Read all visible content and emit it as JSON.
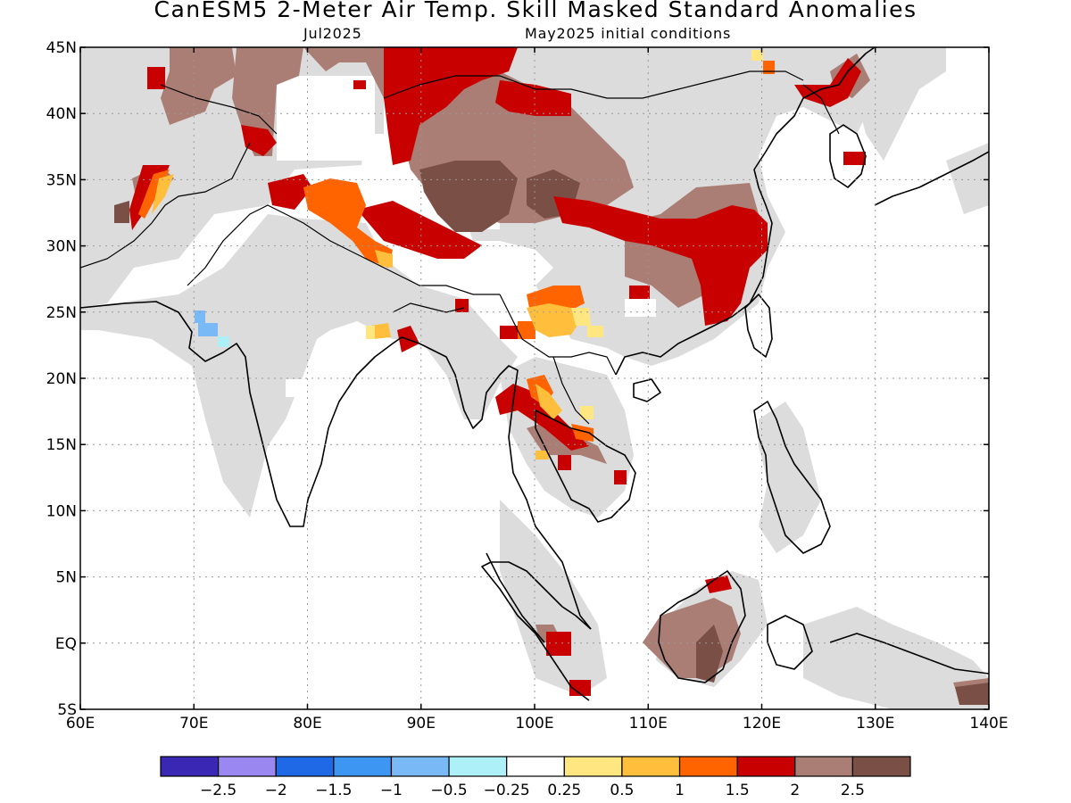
{
  "title": "CanESM5 2-Meter Air Temp. Skill Masked Standard Anomalies",
  "valid_month": "Jul2025",
  "init_conditions": "May2025 initial conditions",
  "map": {
    "lon_range": [
      60,
      140
    ],
    "lat_range": [
      -5,
      45
    ],
    "lon_ticks": [
      "60E",
      "70E",
      "80E",
      "90E",
      "100E",
      "110E",
      "120E",
      "130E",
      "140E"
    ],
    "lat_ticks": [
      "5S",
      "EQ",
      "5N",
      "10N",
      "15N",
      "20N",
      "25N",
      "30N",
      "35N",
      "40N",
      "45N"
    ],
    "mask_color": "#dcdcdc"
  },
  "colorbar": {
    "colors": [
      "#3a28b4",
      "#9b87f0",
      "#1f69e6",
      "#3d96f2",
      "#79b9f5",
      "#aef0f7",
      "#ffffff",
      "#ffe680",
      "#ffbe3c",
      "#ff6400",
      "#c80000",
      "#aa7e75",
      "#7a5046"
    ],
    "labels": [
      "−2.5",
      "−2",
      "−1.5",
      "−1",
      "−0.5",
      "−0.25",
      "0.25",
      "0.5",
      "1",
      "1.5",
      "2",
      "2.5"
    ]
  }
}
